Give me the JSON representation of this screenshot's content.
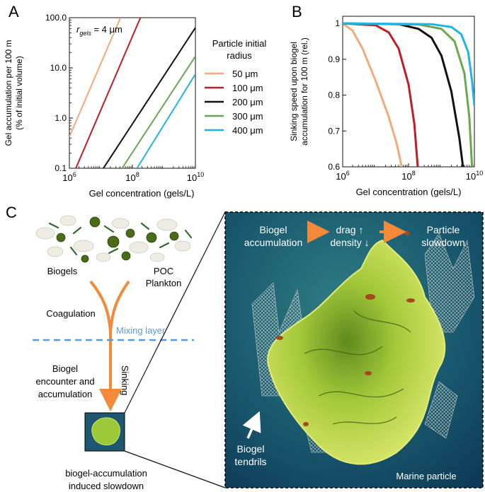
{
  "panels": {
    "a": "A",
    "b": "B",
    "c": "C"
  },
  "chart_data": [
    {
      "type": "line",
      "panel": "A",
      "log_x": true,
      "log_y": true,
      "xlim": [
        1000000,
        10000000000
      ],
      "ylim": [
        0.1,
        100
      ],
      "xlabel": "Gel concentration (gels/L)",
      "ylabel_line1": "Gel accumulation per 100 m",
      "ylabel_line2": "(% of initial volume)",
      "y_ticks": [
        {
          "v": 100,
          "label": "100.0"
        },
        {
          "v": 10,
          "label": "10.0"
        },
        {
          "v": 1,
          "label": "1.0"
        },
        {
          "v": 0.1,
          "label": "0.1"
        }
      ],
      "x_ticks": [
        {
          "v": 1000000,
          "base": "10",
          "exp": "6"
        },
        {
          "v": 100000000,
          "base": "10",
          "exp": "8"
        },
        {
          "v": 10000000000,
          "base": "10",
          "exp": "10"
        }
      ],
      "annotation": {
        "r": "r",
        "sub": "gels",
        "rest": " = 4 μm"
      },
      "legend_title_line1": "Particle initial",
      "legend_title_line2": "radius",
      "series": [
        {
          "name": "50 μm",
          "color": "#f4a97b",
          "x": [
            1000000,
            42000000
          ],
          "y": [
            0.42,
            100
          ]
        },
        {
          "name": "100 μm",
          "color": "#c01d24",
          "x": [
            1600000,
            180000000
          ],
          "y": [
            0.1,
            100
          ]
        },
        {
          "name": "200 μm",
          "color": "#111111",
          "x": [
            12000000,
            10000000000
          ],
          "y": [
            0.1,
            63
          ]
        },
        {
          "name": "300 μm",
          "color": "#6aa84f",
          "x": [
            47000000,
            10000000000
          ],
          "y": [
            0.1,
            17
          ]
        },
        {
          "name": "400 μm",
          "color": "#1fb3e6",
          "x": [
            140000000,
            10000000000
          ],
          "y": [
            0.1,
            7.5
          ]
        }
      ]
    },
    {
      "type": "line",
      "panel": "B",
      "log_x": true,
      "xlim": [
        1000000,
        10000000000
      ],
      "ylim": [
        0.6,
        1.02
      ],
      "xlabel": "Gel concentration (gels/L)",
      "ylabel_line1": "Sinking speed upon biogel",
      "ylabel_line2": "accumulation for 100 m (rel.)",
      "y_ticks": [
        {
          "v": 1,
          "label": "1"
        },
        {
          "v": 0.9,
          "label": "0.9"
        },
        {
          "v": 0.8,
          "label": "0.8"
        },
        {
          "v": 0.7,
          "label": "0.7"
        },
        {
          "v": 0.6,
          "label": "0.6"
        }
      ],
      "x_ticks": [
        {
          "v": 1000000,
          "base": "10",
          "exp": "6"
        },
        {
          "v": 100000000,
          "base": "10",
          "exp": "8"
        },
        {
          "v": 10000000000,
          "base": "10",
          "exp": "10"
        }
      ],
      "series": [
        {
          "name": "50 μm",
          "color": "#f4a97b",
          "x": [
            1000000,
            2000000,
            4000000,
            10000000,
            25000000,
            45000000,
            62000000
          ],
          "y": [
            1.0,
            0.98,
            0.93,
            0.84,
            0.74,
            0.66,
            0.6
          ]
        },
        {
          "name": "100 μm",
          "color": "#c01d24",
          "x": [
            1000000,
            10000000,
            25000000,
            50000000,
            100000000,
            150000000,
            190000000
          ],
          "y": [
            1.0,
            0.995,
            0.975,
            0.93,
            0.83,
            0.72,
            0.6
          ]
        },
        {
          "name": "200 μm",
          "color": "#111111",
          "x": [
            1000000,
            50000000,
            200000000,
            500000000,
            1000000000,
            2000000000,
            3500000000,
            4500000000
          ],
          "y": [
            1.0,
            0.998,
            0.985,
            0.96,
            0.91,
            0.81,
            0.68,
            0.6
          ]
        },
        {
          "name": "300 μm",
          "color": "#6aa84f",
          "x": [
            1000000,
            200000000,
            1000000000,
            2500000000,
            5000000000,
            7000000000,
            8500000000
          ],
          "y": [
            1.0,
            0.997,
            0.985,
            0.95,
            0.86,
            0.74,
            0.6
          ]
        },
        {
          "name": "400 μm",
          "color": "#1fb3e6",
          "x": [
            1000000,
            500000000,
            2000000000,
            4000000000,
            6500000000,
            8500000000,
            10000000000
          ],
          "y": [
            1.0,
            0.998,
            0.99,
            0.97,
            0.92,
            0.84,
            0.77
          ]
        }
      ]
    }
  ],
  "schematic": {
    "biogels": "Biogels",
    "poc_line1": "POC",
    "poc_line2": "Plankton",
    "coagulation": "Coagulation",
    "mixing_layer": "Mixing layer",
    "encounter_line1": "Biogel",
    "encounter_line2": "encounter and",
    "encounter_line3": "accumulation",
    "sinking": "Sinking",
    "slowdown_line1": "biogel-accumulation",
    "slowdown_line2": "induced slowdown",
    "colors": {
      "orange": "#f28a3a",
      "mixing": "#5b9bd5",
      "gel": "#9cc93a",
      "water": "#1d5870"
    }
  },
  "inset": {
    "step1_line1": "Biogel",
    "step1_line2": "accumulation",
    "step2_line1": "drag ↑",
    "step2_line2": "density ↓",
    "step3_line1": "Particle",
    "step3_line2": "slowdown",
    "tendrils_line1": "Biogel",
    "tendrils_line2": "tendrils",
    "marine_particle": "Marine particle"
  }
}
